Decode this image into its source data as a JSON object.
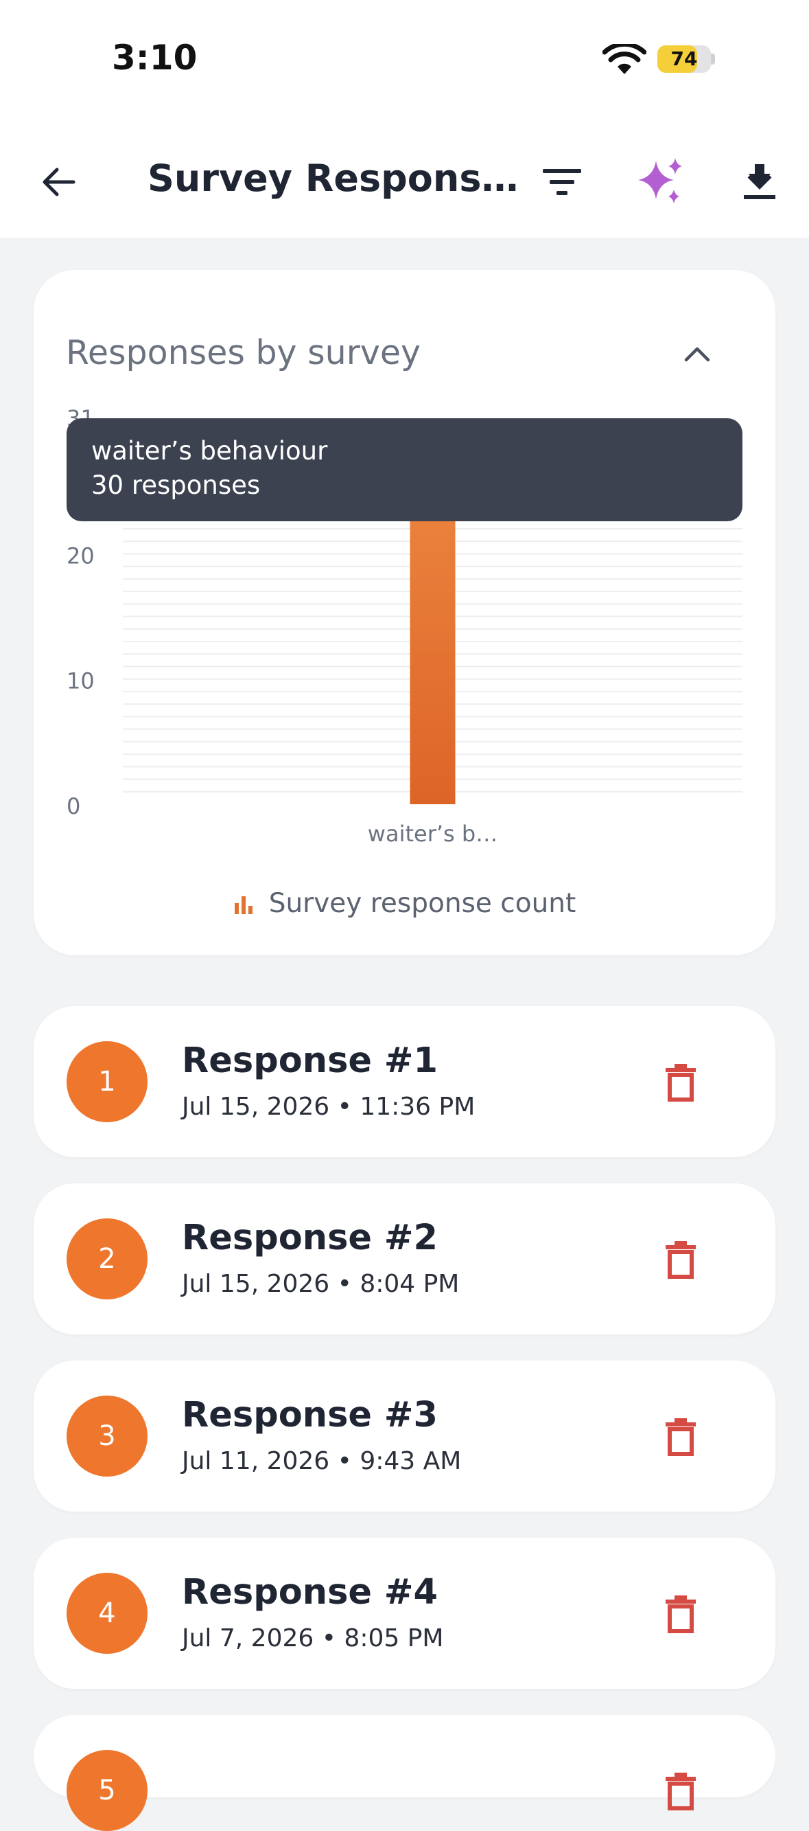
{
  "status_bar": {
    "time": "3:10",
    "battery": "74",
    "battery_level": 0.74
  },
  "header": {
    "title": "Survey Respons…"
  },
  "chart_card": {
    "title": "Responses by survey",
    "tooltip": {
      "line1": "waiter’s behaviour",
      "line2": "30 responses"
    },
    "legend": "Survey response count"
  },
  "chart_data": {
    "type": "bar",
    "categories": [
      "waiter’s b…"
    ],
    "values": [
      30
    ],
    "series": [
      {
        "name": "Survey response count",
        "values": [
          30
        ]
      }
    ],
    "y_ticks": [
      0,
      10,
      20,
      31
    ],
    "ylim": [
      0,
      31
    ],
    "grid": true,
    "legend_position": "bottom",
    "bar_color": "#e2722f"
  },
  "responses": [
    {
      "number": "1",
      "title": "Response #1",
      "date": "Jul 15, 2026 • 11:36 PM"
    },
    {
      "number": "2",
      "title": "Response #2",
      "date": "Jul 15, 2026 • 8:04 PM"
    },
    {
      "number": "3",
      "title": "Response #3",
      "date": "Jul 11, 2026 • 9:43 AM"
    },
    {
      "number": "4",
      "title": "Response #4",
      "date": "Jul 7, 2026 • 8:05 PM"
    },
    {
      "number": "5",
      "title": "",
      "date": ""
    }
  ],
  "colors": {
    "accent": "#ef762d",
    "delete": "#d54a43",
    "sparkle": "#b35ed1"
  }
}
